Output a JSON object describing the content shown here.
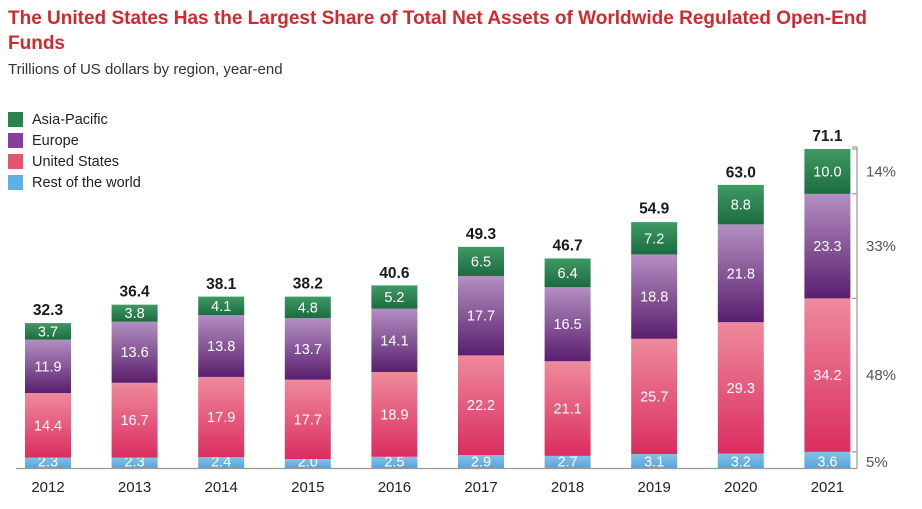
{
  "title": "The United States Has the Largest Share of Total Net Assets of Worldwide Regulated Open-End Funds",
  "subtitle": "Trillions of US dollars by region, year-end",
  "colors": {
    "asia_pacific": [
      "#3e9a64",
      "#1d6b3f"
    ],
    "europe": [
      "#b38fc2",
      "#5a1e6e"
    ],
    "united_states": [
      "#ee8a9c",
      "#db2d60"
    ],
    "rest_of_world": [
      "#86bfe8",
      "#56a6dc"
    ],
    "total_label": "#1a1a1a",
    "axis": "#999999"
  },
  "legend": [
    {
      "label": "Asia-Pacific",
      "color": "#2a8250",
      "icon": "asia-pacific-swatch-icon"
    },
    {
      "label": "Europe",
      "color": "#873e9c",
      "icon": "europe-swatch-icon"
    },
    {
      "label": "United States",
      "color": "#e8546f",
      "icon": "united-states-swatch-icon"
    },
    {
      "label": "Rest of the world",
      "color": "#5fb0e3",
      "icon": "rest-of-world-swatch-icon"
    }
  ],
  "chart_data": {
    "type": "bar",
    "stacked": true,
    "title": "The United States Has the Largest Share of Total Net Assets of Worldwide Regulated Open-End Funds",
    "subtitle": "Trillions of US dollars by region, year-end",
    "categories": [
      "2012",
      "2013",
      "2014",
      "2015",
      "2016",
      "2017",
      "2018",
      "2019",
      "2020",
      "2021"
    ],
    "series": [
      {
        "name": "Rest of the world",
        "key": "rest_of_world",
        "values": [
          2.3,
          2.3,
          2.4,
          2.0,
          2.5,
          2.9,
          2.7,
          3.1,
          3.2,
          3.6
        ],
        "labels": [
          "2.3",
          "2.3",
          "2.4",
          "2.0",
          "2.5",
          "2.9",
          "2.7",
          "3.1",
          "3.2",
          "3.6"
        ]
      },
      {
        "name": "United States",
        "key": "united_states",
        "values": [
          14.4,
          16.7,
          17.9,
          17.7,
          18.9,
          22.2,
          21.1,
          25.7,
          29.3,
          34.2
        ],
        "labels": [
          "14.4",
          "16.7",
          "17.9",
          "17.7",
          "18.9",
          "22.2",
          "21.1",
          "25.7",
          "29.3",
          "34.2"
        ]
      },
      {
        "name": "Europe",
        "key": "europe",
        "values": [
          11.9,
          13.6,
          13.8,
          13.7,
          14.1,
          17.7,
          16.5,
          18.8,
          21.8,
          23.3
        ],
        "labels": [
          "11.9",
          "13.6",
          "13.8",
          "13.7",
          "14.1",
          "17.7",
          "16.5",
          "18.8",
          "21.8",
          "23.3"
        ]
      },
      {
        "name": "Asia-Pacific",
        "key": "asia_pacific",
        "values": [
          3.7,
          3.8,
          4.1,
          4.8,
          5.2,
          6.5,
          6.4,
          7.2,
          8.8,
          10.0
        ],
        "labels": [
          "3.7",
          "3.8",
          "4.1",
          "4.8",
          "5.2",
          "6.5",
          "6.4",
          "7.2",
          "8.8",
          "10.0"
        ]
      }
    ],
    "totals": [
      32.3,
      36.4,
      38.1,
      38.2,
      40.6,
      49.3,
      46.7,
      54.9,
      63.0,
      71.1
    ],
    "total_labels": [
      "32.3",
      "36.4",
      "38.1",
      "38.2",
      "40.6",
      "49.3",
      "46.7",
      "54.9",
      "63.0",
      "71.1"
    ],
    "share_labels_2021": [
      {
        "series": "asia_pacific",
        "label": "14%"
      },
      {
        "series": "europe",
        "label": "33%"
      },
      {
        "series": "united_states",
        "label": "48%"
      },
      {
        "series": "rest_of_world",
        "label": "5%"
      }
    ],
    "ylim": [
      0,
      71.1
    ],
    "grid": false,
    "legend_position": "top-left"
  }
}
